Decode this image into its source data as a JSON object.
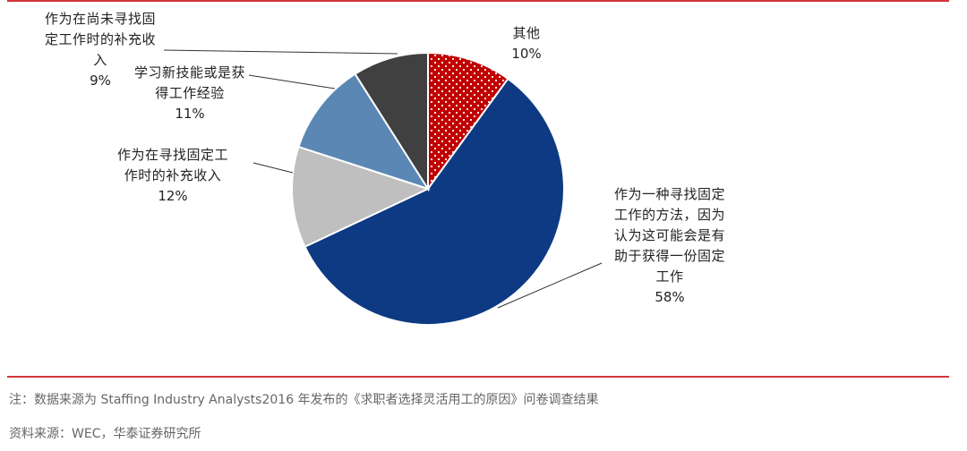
{
  "colors": {
    "rule": "#d3363a",
    "navy": "#0d3a83",
    "light_gray": "#bfbfbf",
    "steel_blue": "#5b87b5",
    "dark_gray": "#404040",
    "red": "#c00000"
  },
  "chart_data": {
    "type": "pie",
    "title": "",
    "start_angle_deg": 0,
    "direction": "clockwise",
    "slices": [
      {
        "label_lines": [
          "其他"
        ],
        "pct_text": "10%",
        "value": 10,
        "color": "#c00000",
        "pattern": "white-dots"
      },
      {
        "label_lines": [
          "作为一种寻找固定",
          "工作的方法，因为",
          "认为这可能会是有",
          "助于获得一份固定",
          "工作"
        ],
        "pct_text": "58%",
        "value": 58,
        "color": "#0d3a83",
        "pattern": "none"
      },
      {
        "label_lines": [
          "作为在寻找固定工",
          "作时的补充收入"
        ],
        "pct_text": "12%",
        "value": 12,
        "color": "#bfbfbf",
        "pattern": "none"
      },
      {
        "label_lines": [
          "学习新技能或是获",
          "得工作经验"
        ],
        "pct_text": "11%",
        "value": 11,
        "color": "#5b87b5",
        "pattern": "none"
      },
      {
        "label_lines": [
          "作为在尚未寻找固",
          "定工作时的补充收",
          "入"
        ],
        "pct_text": "9%",
        "value": 9,
        "color": "#404040",
        "pattern": "none"
      }
    ]
  },
  "notes": {
    "note": "注：数据来源为 Staffing Industry Analysts2016 年发布的《求职者选择灵活用工的原因》问卷调查结果",
    "source": "资料来源：WEC，华泰证券研究所"
  }
}
